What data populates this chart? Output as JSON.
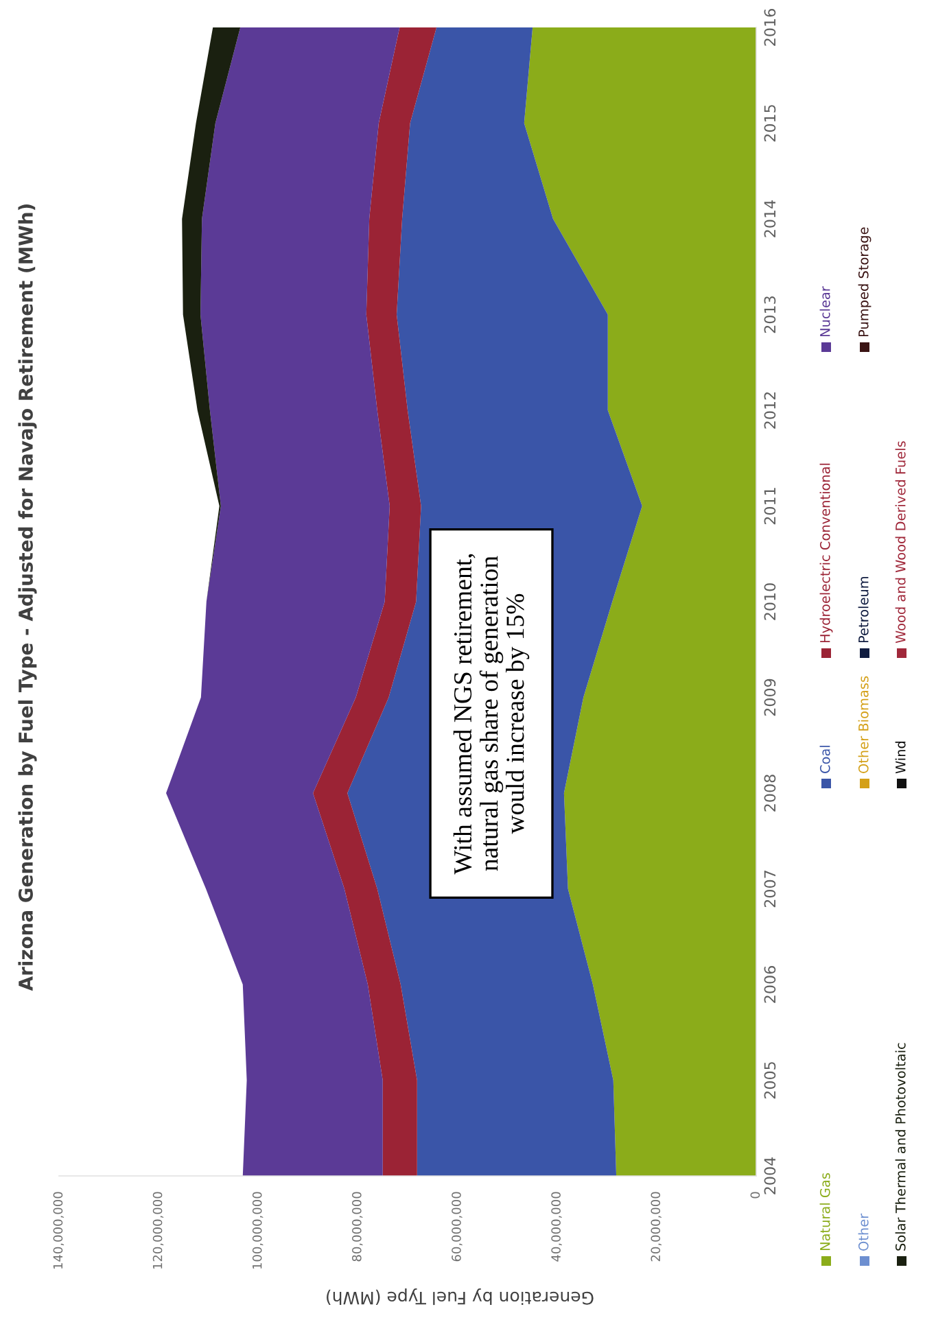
{
  "chart_data": {
    "type": "area",
    "stacked": true,
    "orientation": "horizontal",
    "title": "Arizona Generation by Fuel Type - Adjusted for Navajo Retirement (MWh)",
    "xlabel": "Generation by Fuel Type (MWh)",
    "categories": [
      "2016",
      "2015",
      "2014",
      "2013",
      "2012",
      "2011",
      "2010",
      "2009",
      "2008",
      "2007",
      "2006",
      "2005",
      "2004"
    ],
    "xlim": [
      140000000,
      0
    ],
    "xticks": [
      {
        "value": 0,
        "label": "0"
      },
      {
        "value": 20000000,
        "label": "20,000,000"
      },
      {
        "value": 40000000,
        "label": "40,000,000"
      },
      {
        "value": 60000000,
        "label": "60,000,000"
      },
      {
        "value": 80000000,
        "label": "80,000,000"
      },
      {
        "value": 100000000,
        "label": "100,000,000"
      },
      {
        "value": 120000000,
        "label": "120,000,000"
      },
      {
        "value": 140000000,
        "label": "140,000,000"
      }
    ],
    "series": [
      {
        "name": "Natural Gas",
        "color": "#8bac1a",
        "values": [
          44900000,
          46600000,
          40800000,
          29800000,
          29800000,
          22900000,
          28900000,
          34700000,
          38600000,
          37800000,
          32800000,
          28700000,
          28100000
        ]
      },
      {
        "name": "Coal",
        "color": "#3a55a8",
        "values": [
          19300000,
          22900000,
          30300000,
          42400000,
          40200000,
          44400000,
          39400000,
          39100000,
          43500000,
          38300000,
          38600000,
          39400000,
          40000000
        ]
      },
      {
        "name": "Hydroelectric Conventional",
        "color": "#9b2335",
        "values": [
          7400000,
          6300000,
          6600000,
          6100000,
          6100000,
          6300000,
          6300000,
          6600000,
          6900000,
          6600000,
          6600000,
          6900000,
          6900000
        ]
      },
      {
        "name": "Nuclear",
        "color": "#5b3a96",
        "values": [
          32000000,
          32800000,
          33600000,
          33300000,
          33600000,
          33900000,
          35800000,
          31100000,
          29500000,
          27800000,
          25100000,
          27300000,
          28100000
        ]
      },
      {
        "name": "Other",
        "color": "#6d8fd0",
        "values": [
          null,
          null,
          null,
          null,
          null,
          null,
          null,
          null,
          null,
          null,
          null,
          null,
          null
        ]
      },
      {
        "name": "Other Biomass",
        "color": "#d4a017",
        "values": [
          null,
          null,
          null,
          null,
          null,
          null,
          null,
          null,
          null,
          null,
          null,
          null,
          null
        ]
      },
      {
        "name": "Petroleum",
        "color": "#101c40",
        "values": [
          null,
          null,
          null,
          null,
          null,
          null,
          null,
          null,
          null,
          null,
          null,
          null,
          null
        ]
      },
      {
        "name": "Pumped Storage",
        "color": "#3a1414",
        "values": [
          null,
          null,
          null,
          null,
          null,
          null,
          null,
          null,
          null,
          null,
          null,
          null,
          null
        ]
      },
      {
        "name": "Solar Thermal and Photovoltaic",
        "color": "#1a2010",
        "values": [
          5500000,
          3900000,
          4000000,
          3500000,
          2500000,
          300000,
          0,
          0,
          0,
          0,
          0,
          0,
          0
        ]
      },
      {
        "name": "Wind",
        "color": "#111111",
        "values": [
          null,
          null,
          null,
          null,
          null,
          null,
          null,
          null,
          null,
          null,
          null,
          null,
          null
        ]
      },
      {
        "name": "Wood and Wood Derived Fuels",
        "color": "#a0283a",
        "values": [
          null,
          null,
          null,
          null,
          null,
          null,
          null,
          null,
          null,
          null,
          null,
          null,
          null
        ]
      }
    ],
    "annotations": [
      "With assumed NGS retirement,\nnatural gas share of generation\nwould increase by 15%"
    ],
    "legend": "right"
  }
}
